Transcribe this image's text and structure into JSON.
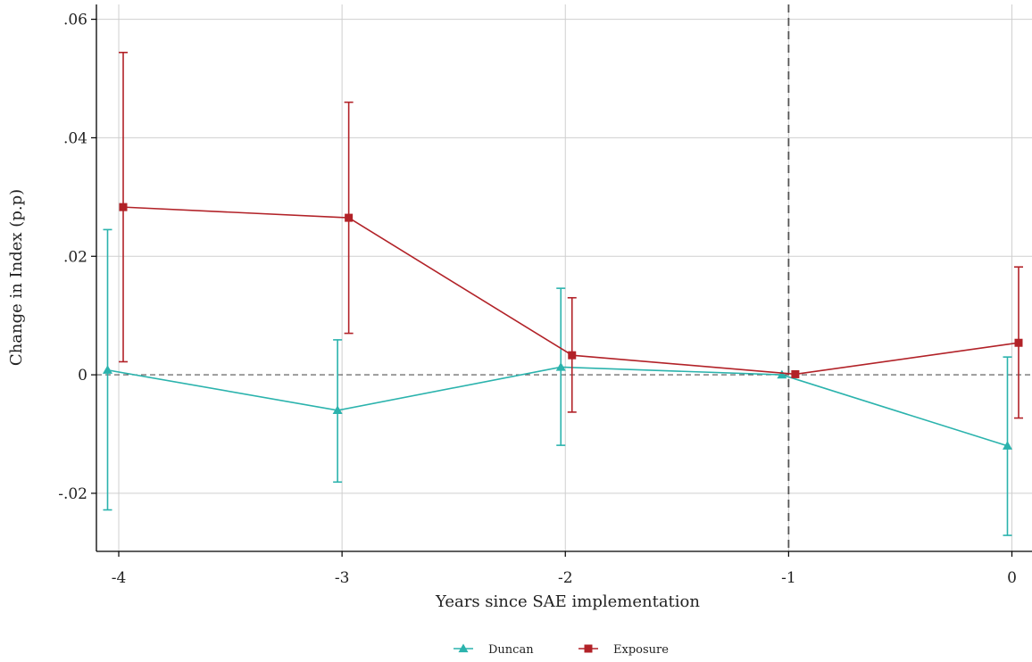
{
  "chart_data": {
    "type": "line",
    "title": "",
    "xlabel": "Years since SAE implementation",
    "ylabel": "Change in Index (p.p)",
    "xlim": [
      -4.1,
      0.09
    ],
    "ylim": [
      -0.0298,
      0.0625
    ],
    "x_ticks": [
      -4,
      -3,
      -2,
      -1,
      0
    ],
    "x_tick_labels": [
      "-4",
      "-3",
      "-2",
      "-1",
      "0"
    ],
    "y_ticks": [
      -0.02,
      0,
      0.02,
      0.04,
      0.06
    ],
    "y_tick_labels": [
      "-.02",
      "0",
      ".02",
      ".04",
      ".06"
    ],
    "grid": true,
    "reference_lines": [
      {
        "axis": "y",
        "value": 0,
        "style": "dashed"
      },
      {
        "axis": "x",
        "value": -1,
        "style": "dashed"
      }
    ],
    "legend_position": "bottom",
    "series": [
      {
        "name": "Duncan",
        "color": "#2bb3ad",
        "marker": "triangle",
        "x": [
          -4.05,
          -3.02,
          -2.02,
          -1.03,
          -0.02
        ],
        "y": [
          0.0008,
          -0.006,
          0.0013,
          0.0,
          -0.012
        ],
        "ci_low": [
          -0.0228,
          -0.0181,
          -0.0119,
          0.0,
          -0.0271
        ],
        "ci_high": [
          0.0245,
          0.0059,
          0.0146,
          0.0,
          0.003
        ]
      },
      {
        "name": "Exposure",
        "color": "#b22228",
        "marker": "square",
        "x": [
          -3.98,
          -2.97,
          -1.97,
          -0.97,
          0.03
        ],
        "y": [
          0.0283,
          0.0265,
          0.0033,
          0.0001,
          0.0054
        ],
        "ci_low": [
          0.0022,
          0.007,
          -0.0063,
          0.0001,
          -0.0073
        ],
        "ci_high": [
          0.0544,
          0.046,
          0.013,
          0.0001,
          0.0182
        ]
      }
    ]
  }
}
